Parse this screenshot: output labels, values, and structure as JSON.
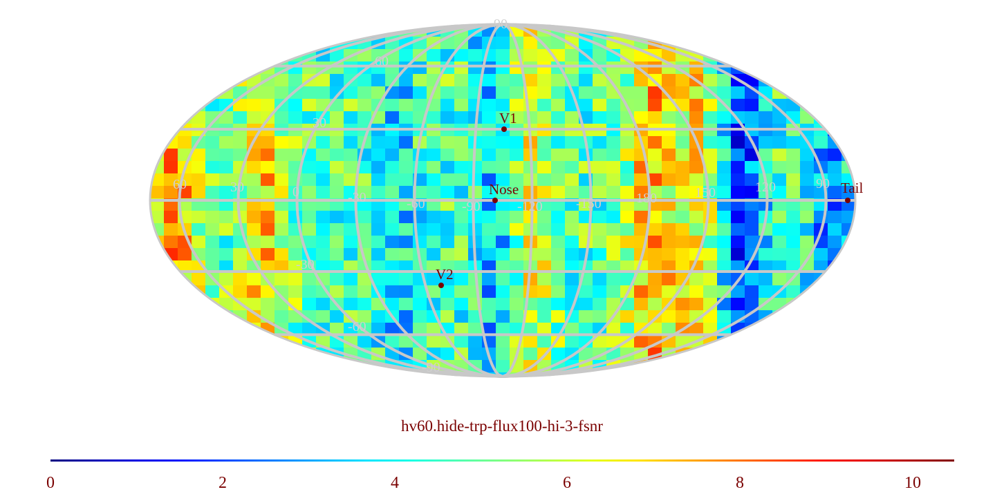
{
  "title": "hv60.hide-trp-flux100-hi-3-fsnr",
  "projection": "mollweide",
  "colormap": "jet",
  "grid_color": "#c8c8c8",
  "label_color": "#7a0000",
  "longitude_labels": [
    "60",
    "30",
    "0",
    "-30",
    "-60",
    "-90",
    "-120",
    "-150",
    "180",
    "150",
    "120",
    "90"
  ],
  "latitude_labels": [
    "90",
    "60",
    "30",
    "-30",
    "-60",
    "-90"
  ],
  "markers": [
    {
      "name": "V1",
      "lon": -95,
      "lat": 33
    },
    {
      "name": "Nose",
      "lon": -105,
      "lat": 0
    },
    {
      "name": "V2",
      "lon": -70,
      "lat": -32
    },
    {
      "name": "Tail",
      "lon": 75,
      "lat": 0
    }
  ],
  "colorbar": {
    "min": 0,
    "max": 10.5,
    "tick_labels": [
      "0",
      "2",
      "4",
      "6",
      "8",
      "10"
    ]
  }
}
